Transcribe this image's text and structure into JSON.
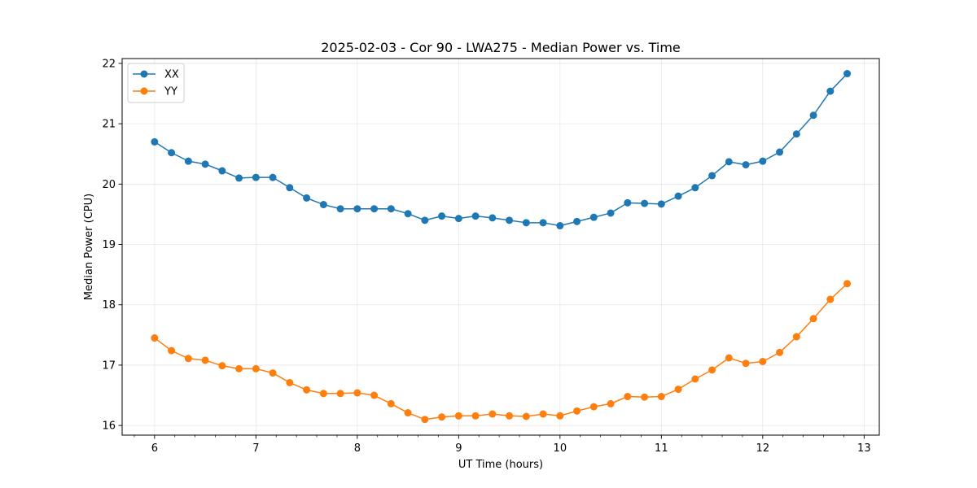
{
  "chart_data": {
    "type": "line",
    "title": "2025-02-03 - Cor 90 - LWA275 - Median Power vs. Time",
    "xlabel": "UT Time (hours)",
    "ylabel": "Median Power (CPU)",
    "xlim": [
      5.68,
      13.15
    ],
    "ylim": [
      15.84,
      22.08
    ],
    "xticks": [
      6,
      7,
      8,
      9,
      10,
      11,
      12,
      13
    ],
    "yticks": [
      16,
      17,
      18,
      19,
      20,
      21,
      22
    ],
    "grid": true,
    "legend_position": "top-left",
    "x": [
      6.0,
      6.1667,
      6.3333,
      6.5,
      6.6667,
      6.8333,
      7.0,
      7.1667,
      7.3333,
      7.5,
      7.6667,
      7.8333,
      8.0,
      8.1667,
      8.3333,
      8.5,
      8.6667,
      8.8333,
      9.0,
      9.1667,
      9.3333,
      9.5,
      9.6667,
      9.8333,
      10.0,
      10.1667,
      10.3333,
      10.5,
      10.6667,
      10.8333,
      11.0,
      11.1667,
      11.3333,
      11.5,
      11.6667,
      11.8333,
      12.0,
      12.1667,
      12.3333,
      12.5,
      12.6667,
      12.8333
    ],
    "series": [
      {
        "name": "XX",
        "color": "#1f77b4",
        "values": [
          20.7,
          20.52,
          20.38,
          20.33,
          20.22,
          20.1,
          20.11,
          20.11,
          19.94,
          19.77,
          19.66,
          19.59,
          19.59,
          19.59,
          19.59,
          19.51,
          19.4,
          19.47,
          19.43,
          19.47,
          19.44,
          19.4,
          19.36,
          19.36,
          19.31,
          19.38,
          19.45,
          19.52,
          19.69,
          19.68,
          19.67,
          19.8,
          19.94,
          20.14,
          20.37,
          20.32,
          20.38,
          20.53,
          20.83,
          21.14,
          21.54,
          21.83
        ]
      },
      {
        "name": "YY",
        "color": "#ff7f0e",
        "values": [
          17.45,
          17.24,
          17.11,
          17.08,
          16.99,
          16.94,
          16.94,
          16.87,
          16.71,
          16.59,
          16.53,
          16.53,
          16.54,
          16.5,
          16.36,
          16.21,
          16.1,
          16.14,
          16.16,
          16.16,
          16.19,
          16.16,
          16.15,
          16.19,
          16.16,
          16.24,
          16.31,
          16.36,
          16.48,
          16.47,
          16.48,
          16.6,
          16.77,
          16.92,
          17.12,
          17.03,
          17.06,
          17.21,
          17.47,
          17.77,
          18.09,
          18.35
        ]
      }
    ]
  }
}
